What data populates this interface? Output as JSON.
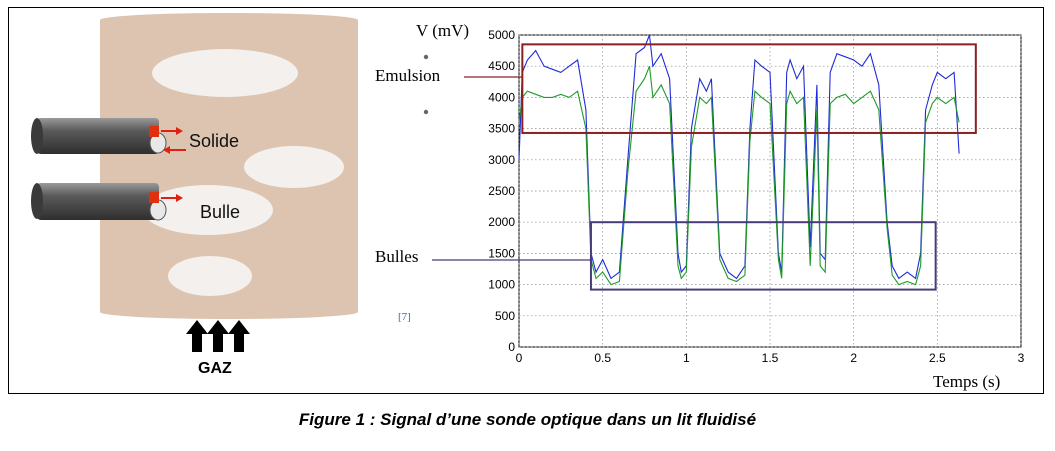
{
  "figure": {
    "caption": "Figure 1 : Signal d’une sonde optique dans un lit fluidisé",
    "citation": "[7]",
    "schematic": {
      "probe_labels": [
        "Solide",
        "Bulle"
      ],
      "gas_label": "GAZ"
    },
    "annotations": {
      "emulsion": "Emulsion",
      "bubbles": "Bulles"
    }
  },
  "chart_data": {
    "type": "line",
    "xlabel": "Temps (s)",
    "ylabel": "V (mV)",
    "xlim": [
      0,
      3
    ],
    "ylim": [
      0,
      5000
    ],
    "xticks": [
      0,
      0.5,
      1,
      1.5,
      2,
      2.5,
      3
    ],
    "yticks": [
      0,
      500,
      1000,
      1500,
      2000,
      2500,
      3000,
      3500,
      4000,
      4500,
      5000
    ],
    "x_tick_labels": [
      "0",
      "0.5",
      "1",
      "1.5",
      "2",
      "2.5",
      "3"
    ],
    "y_tick_labels": [
      "0",
      "500",
      "1000",
      "1500",
      "2000",
      "2500",
      "3000",
      "3500",
      "4000",
      "4500",
      "5000"
    ],
    "grid": true,
    "series": [
      {
        "color": "#1f2bd6",
        "x": [
          0,
          0.02,
          0.05,
          0.1,
          0.15,
          0.2,
          0.25,
          0.3,
          0.35,
          0.4,
          0.43,
          0.46,
          0.5,
          0.55,
          0.6,
          0.65,
          0.7,
          0.75,
          0.78,
          0.8,
          0.85,
          0.9,
          0.95,
          0.97,
          1.0,
          1.03,
          1.08,
          1.12,
          1.15,
          1.2,
          1.25,
          1.3,
          1.35,
          1.38,
          1.41,
          1.45,
          1.5,
          1.55,
          1.57,
          1.6,
          1.62,
          1.66,
          1.7,
          1.74,
          1.78,
          1.8,
          1.83,
          1.86,
          1.9,
          1.95,
          2.0,
          2.05,
          2.1,
          2.15,
          2.2,
          2.23,
          2.27,
          2.32,
          2.37,
          2.4,
          2.43,
          2.47,
          2.5,
          2.55,
          2.6,
          2.63
        ],
        "y": [
          3000,
          4400,
          4600,
          4750,
          4500,
          4450,
          4400,
          4500,
          4600,
          3800,
          1500,
          1200,
          1400,
          1100,
          1200,
          3000,
          4700,
          4800,
          5000,
          4500,
          4700,
          4300,
          1500,
          1200,
          1300,
          3500,
          4300,
          4100,
          4300,
          1500,
          1200,
          1100,
          1300,
          3500,
          4600,
          4500,
          4400,
          1500,
          1200,
          4400,
          4600,
          4300,
          4500,
          1600,
          4200,
          1500,
          1400,
          4400,
          4700,
          4650,
          4600,
          4500,
          4700,
          4200,
          2000,
          1300,
          1100,
          1200,
          1100,
          1500,
          3800,
          4200,
          4400,
          4300,
          4400,
          3100
        ]
      },
      {
        "color": "#1f9a2a",
        "x": [
          0,
          0.02,
          0.05,
          0.1,
          0.15,
          0.2,
          0.25,
          0.3,
          0.35,
          0.4,
          0.43,
          0.46,
          0.5,
          0.55,
          0.6,
          0.65,
          0.7,
          0.75,
          0.78,
          0.8,
          0.85,
          0.9,
          0.95,
          0.97,
          1.0,
          1.03,
          1.08,
          1.12,
          1.15,
          1.2,
          1.25,
          1.3,
          1.35,
          1.38,
          1.41,
          1.45,
          1.5,
          1.55,
          1.57,
          1.6,
          1.62,
          1.66,
          1.7,
          1.74,
          1.78,
          1.8,
          1.83,
          1.86,
          1.9,
          1.95,
          2.0,
          2.05,
          2.1,
          2.15,
          2.2,
          2.23,
          2.27,
          2.32,
          2.37,
          2.4,
          2.43,
          2.47,
          2.5,
          2.55,
          2.6,
          2.63
        ],
        "y": [
          3600,
          4000,
          4100,
          4050,
          4000,
          4000,
          4050,
          4000,
          4100,
          3500,
          1400,
          1100,
          1200,
          1000,
          1050,
          2800,
          4100,
          4300,
          4500,
          4000,
          4200,
          3900,
          1300,
          1100,
          1200,
          3200,
          4000,
          3900,
          4000,
          1400,
          1100,
          1050,
          1150,
          3300,
          4100,
          4000,
          3900,
          1400,
          1100,
          3900,
          4100,
          3900,
          4000,
          1300,
          3800,
          1300,
          1200,
          3900,
          4000,
          4050,
          3900,
          4000,
          4100,
          3800,
          1900,
          1150,
          1000,
          1050,
          1000,
          1300,
          3600,
          3900,
          4000,
          3900,
          4000,
          3600
        ]
      }
    ]
  }
}
